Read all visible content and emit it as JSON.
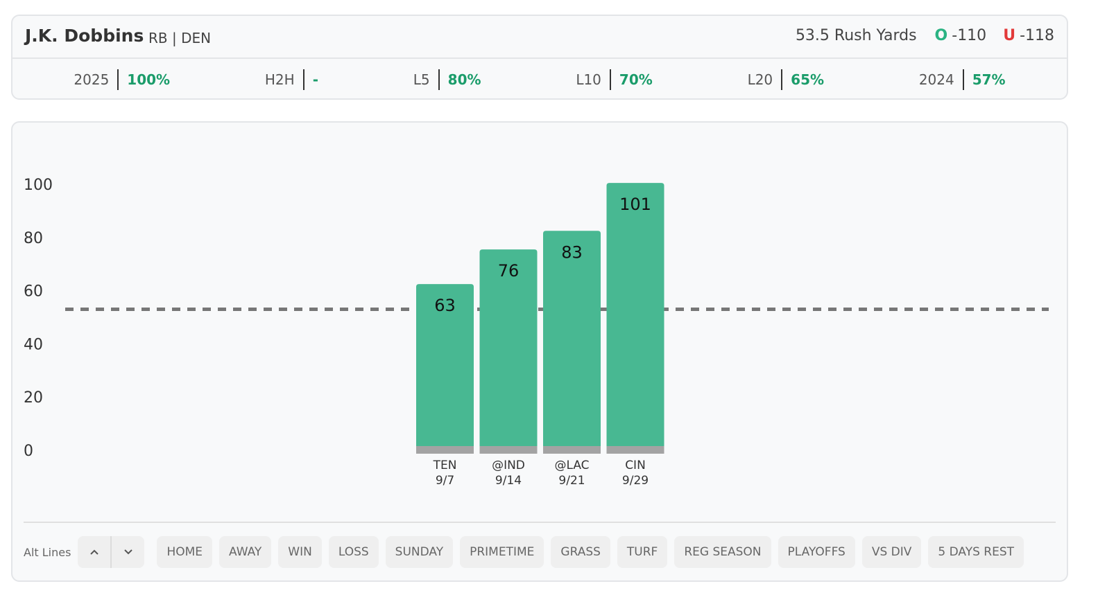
{
  "header": {
    "player": "J.K. Dobbins",
    "position_team": "RB | DEN",
    "line": 53.5,
    "market": "Rush Yards",
    "over_label": "O",
    "over_odds": "-110",
    "under_label": "U",
    "under_odds": "-118"
  },
  "stats": [
    {
      "label": "2025",
      "value": "100%"
    },
    {
      "label": "H2H",
      "value": "-"
    },
    {
      "label": "L5",
      "value": "80%"
    },
    {
      "label": "L10",
      "value": "70%"
    },
    {
      "label": "L20",
      "value": "65%"
    },
    {
      "label": "2024",
      "value": "57%"
    }
  ],
  "chart_data": {
    "type": "bar",
    "categories": [
      "TEN",
      "@IND",
      "@LAC",
      "CIN"
    ],
    "dates": [
      "9/7",
      "9/14",
      "9/21",
      "9/29"
    ],
    "values": [
      63,
      76,
      83,
      101
    ],
    "color": "#48b892",
    "base_color": "#a3a3a3",
    "ylim": [
      0,
      100
    ],
    "yticks": [
      0,
      20,
      40,
      60,
      80,
      100
    ]
  },
  "filters": {
    "alt_lines_label": "Alt Lines",
    "buttons": [
      "HOME",
      "AWAY",
      "WIN",
      "LOSS",
      "SUNDAY",
      "PRIMETIME",
      "GRASS",
      "TURF",
      "REG SEASON",
      "PLAYOFFS",
      "VS DIV",
      "5 DAYS REST"
    ]
  }
}
